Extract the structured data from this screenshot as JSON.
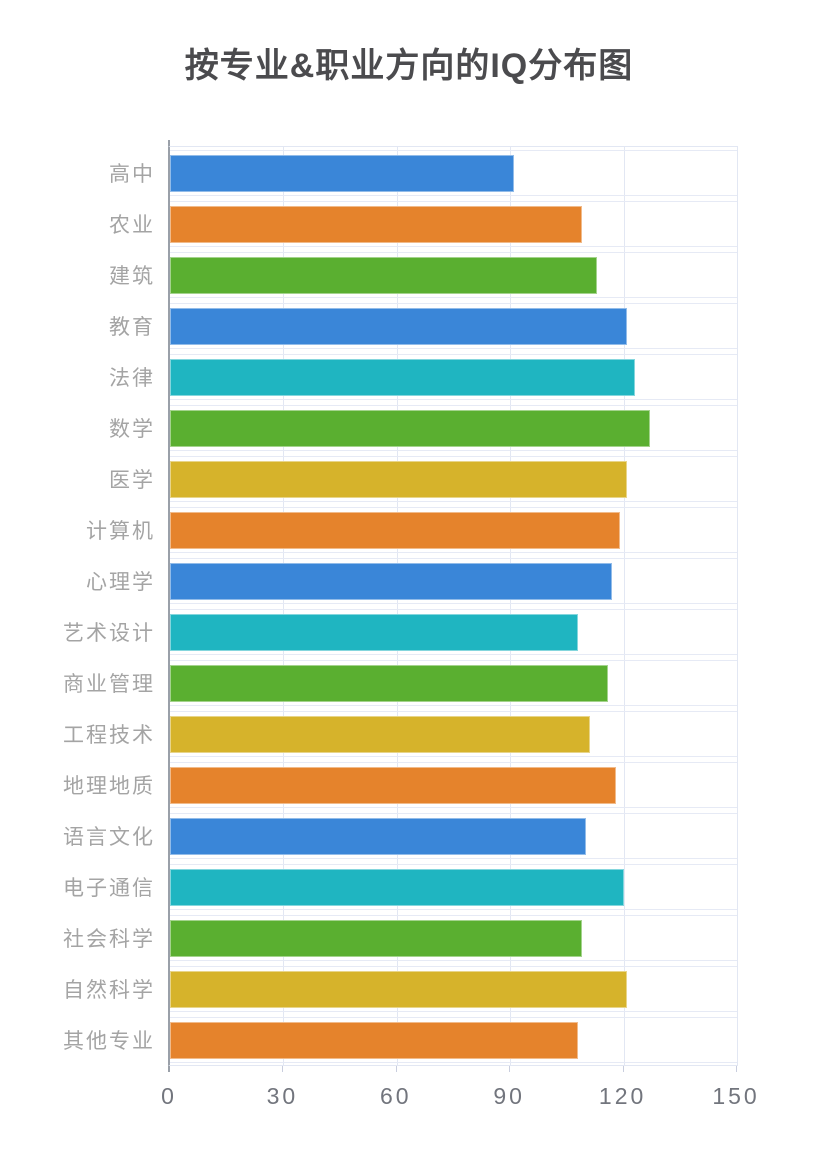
{
  "title": "按专业&职业方向的IQ分布图",
  "palette": {
    "blue": "#3a86d8",
    "orange": "#e5832c",
    "green": "#5aaf30",
    "teal": "#1fb5c1",
    "yellow": "#d6b32b",
    "gridline": "#e2e7f3",
    "axis_line": "#9aa0a9",
    "title_text": "#4b4b4e",
    "category_text": "#a4a4a4",
    "tick_text": "#72757d"
  },
  "chart_data": {
    "type": "bar",
    "orientation": "horizontal",
    "title": "按专业&职业方向的IQ分布图",
    "categories": [
      "高中",
      "农业",
      "建筑",
      "教育",
      "法律",
      "数学",
      "医学",
      "计算机",
      "心理学",
      "艺术设计",
      "商业管理",
      "工程技术",
      "地理地质",
      "语言文化",
      "电子通信",
      "社会科学",
      "自然科学",
      "其他专业"
    ],
    "values": [
      91,
      109,
      113,
      121,
      123,
      127,
      121,
      119,
      117,
      108,
      116,
      111,
      118,
      110,
      120,
      109,
      121,
      108
    ],
    "bar_colors": [
      "#3a86d8",
      "#e5832c",
      "#5aaf30",
      "#3a86d8",
      "#1fb5c1",
      "#5aaf30",
      "#d6b32b",
      "#e5832c",
      "#3a86d8",
      "#1fb5c1",
      "#5aaf30",
      "#d6b32b",
      "#e5832c",
      "#3a86d8",
      "#1fb5c1",
      "#5aaf30",
      "#d6b32b",
      "#e5832c"
    ],
    "xlabel": "",
    "ylabel": "",
    "xlim": [
      0,
      150
    ],
    "xticks": [
      0,
      30,
      60,
      90,
      120,
      150
    ],
    "xtick_labels": [
      "0",
      "30",
      "60",
      "90",
      "120",
      "150"
    ],
    "grid": true,
    "legend": false
  }
}
